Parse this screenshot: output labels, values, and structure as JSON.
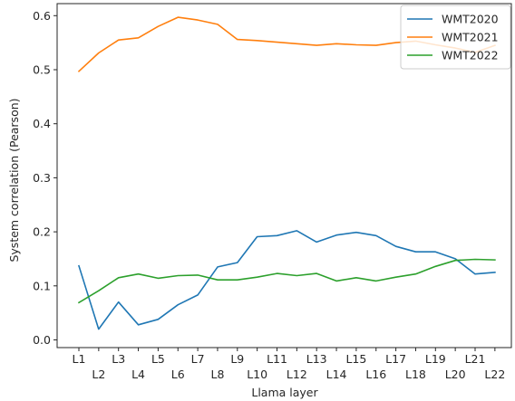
{
  "chart_data": {
    "type": "line",
    "xlabel": "Llama layer",
    "ylabel": "System correlation (Pearson)",
    "categories": [
      "L1",
      "L2",
      "L3",
      "L4",
      "L5",
      "L6",
      "L7",
      "L8",
      "L9",
      "L10",
      "L11",
      "L12",
      "L13",
      "L14",
      "L15",
      "L16",
      "L17",
      "L18",
      "L19",
      "L20",
      "L21",
      "L22"
    ],
    "yticks": [
      "0.0",
      "0.1",
      "0.2",
      "0.3",
      "0.4",
      "0.5",
      "0.6"
    ],
    "ylim": [
      -0.007,
      0.628
    ],
    "grid": false,
    "legend_position": "top-right",
    "series": [
      {
        "name": "WMT2020",
        "color": "#1f77b4",
        "values": [
          0.137,
          0.02,
          0.07,
          0.028,
          0.038,
          0.065,
          0.083,
          0.135,
          0.143,
          0.191,
          0.193,
          0.202,
          0.181,
          0.194,
          0.199,
          0.193,
          0.173,
          0.163,
          0.163,
          0.15,
          0.122,
          0.125
        ]
      },
      {
        "name": "WMT2021",
        "color": "#ff7f0e",
        "values": [
          0.497,
          0.531,
          0.555,
          0.559,
          0.58,
          0.597,
          0.592,
          0.584,
          0.556,
          0.554,
          0.551,
          0.548,
          0.545,
          0.548,
          0.546,
          0.545,
          0.55,
          0.553,
          0.546,
          0.54,
          0.532,
          0.545
        ]
      },
      {
        "name": "WMT2022",
        "color": "#2ca02c",
        "values": [
          0.069,
          0.091,
          0.115,
          0.122,
          0.114,
          0.119,
          0.12,
          0.111,
          0.111,
          0.116,
          0.123,
          0.119,
          0.123,
          0.109,
          0.115,
          0.109,
          0.116,
          0.122,
          0.136,
          0.147,
          0.149,
          0.148
        ]
      }
    ]
  }
}
